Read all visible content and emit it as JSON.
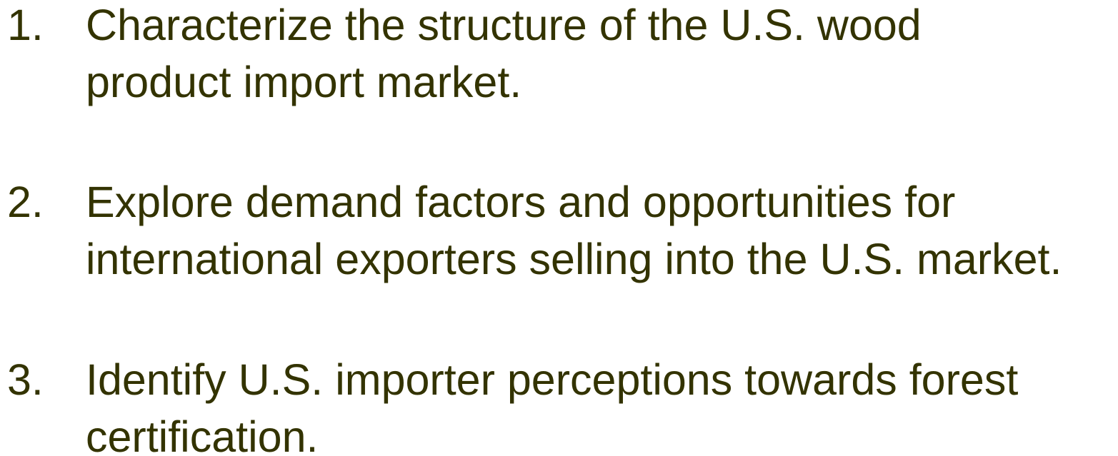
{
  "list": {
    "items": [
      {
        "number": "1.",
        "lines": [
          "Characterize the structure of the U.S. wood",
          "product import market."
        ]
      },
      {
        "number": "2.",
        "lines": [
          "Explore demand factors and opportunities for",
          "international exporters selling into the U.S. market."
        ]
      },
      {
        "number": "3.",
        "lines": [
          "Identify U.S. importer perceptions towards forest",
          "certification."
        ]
      }
    ]
  }
}
